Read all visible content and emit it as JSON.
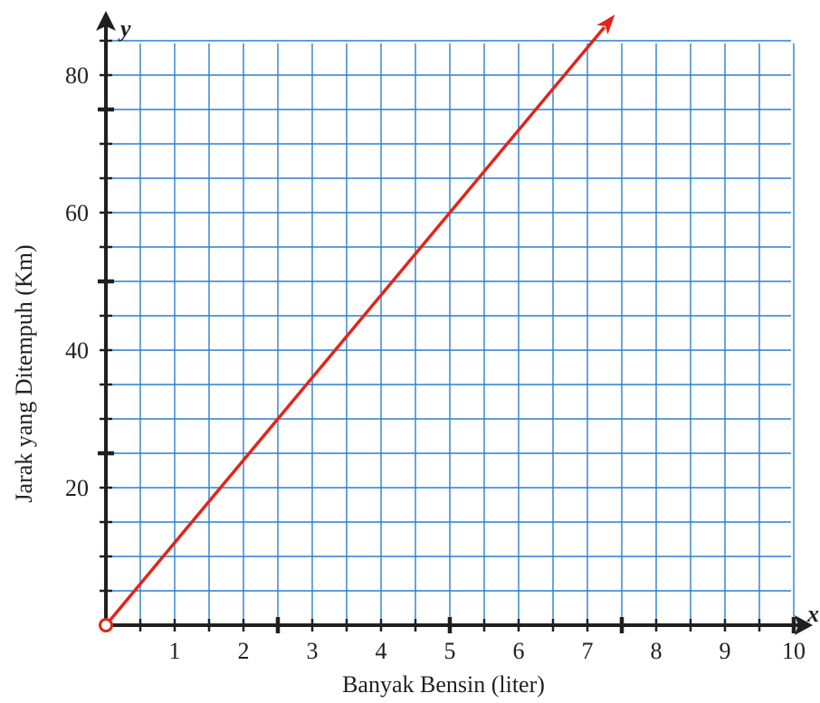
{
  "chart_data": {
    "type": "line",
    "xlabel": "Banyak Bensin (liter)",
    "ylabel": "Jarak yang Ditempuh (Km)",
    "x_axis_var": "x",
    "y_axis_var": "y",
    "xlim": [
      0,
      10
    ],
    "ylim": [
      0,
      80
    ],
    "x_ticks": [
      "1",
      "2",
      "3",
      "4",
      "5",
      "6",
      "7",
      "8",
      "9",
      "10"
    ],
    "y_ticks": [
      "20",
      "40",
      "60",
      "80"
    ],
    "grid": true,
    "grid_step_x": 0.5,
    "grid_step_y": 5,
    "series": [
      {
        "x": [
          0,
          7.4
        ],
        "y": [
          0,
          88.8
        ]
      }
    ],
    "colors": {
      "grid": "#2a7fd0",
      "line": "#e1251b",
      "axis": "#231f20"
    }
  }
}
